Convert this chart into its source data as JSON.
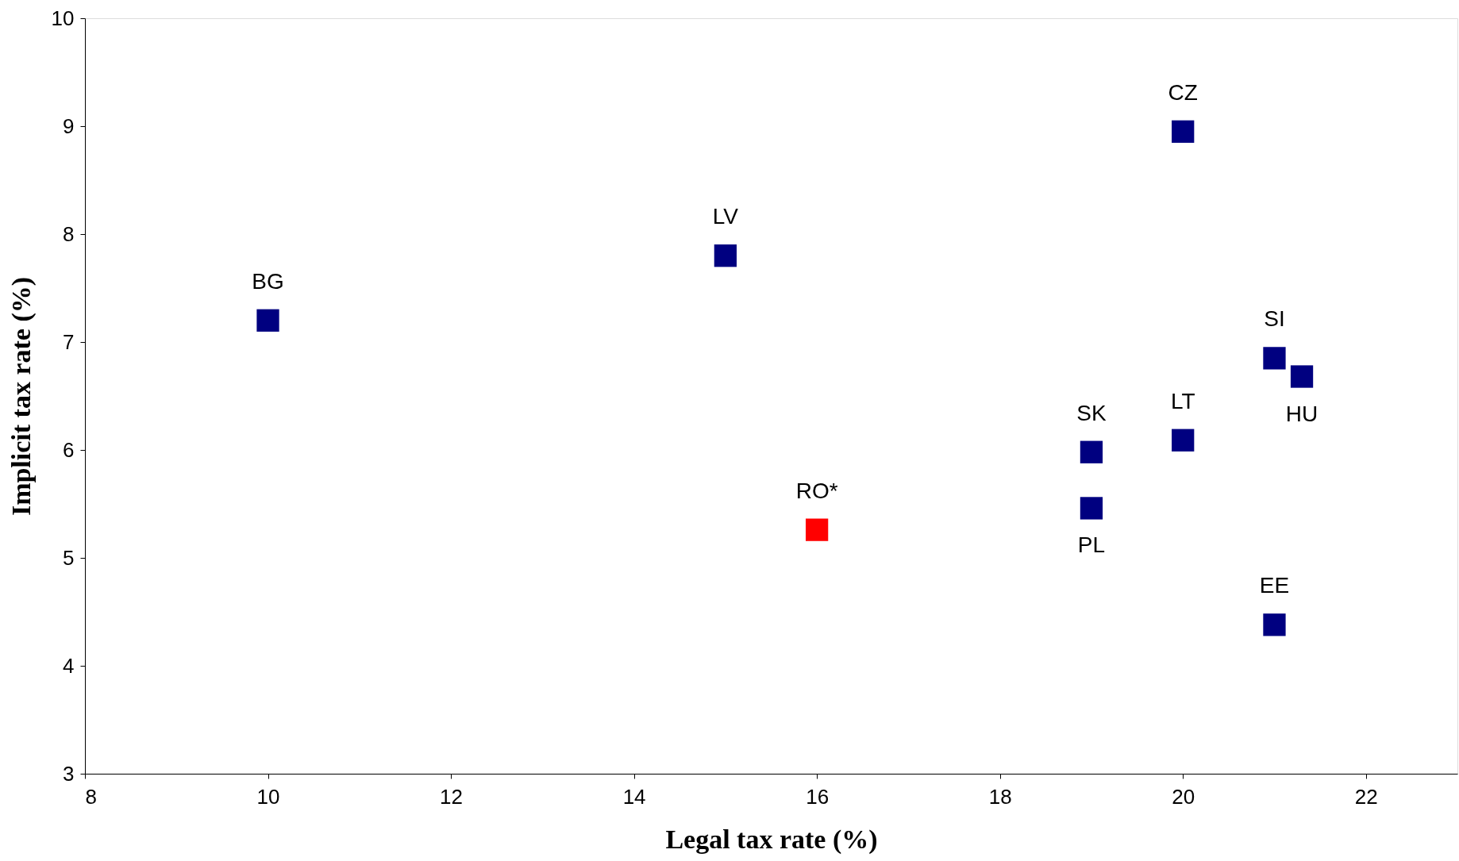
{
  "chart_data": {
    "type": "scatter",
    "xlabel": "Legal tax rate (%)",
    "ylabel": "Implicit tax rate (%)",
    "x": [
      10,
      15,
      20,
      21,
      21.3,
      20,
      19,
      19,
      16,
      21
    ],
    "values": [
      7.2,
      7.8,
      8.95,
      6.85,
      6.68,
      6.09,
      5.98,
      5.46,
      5.26,
      4.38
    ],
    "colors": [
      "#000080",
      "#000080",
      "#000080",
      "#000080",
      "#000080",
      "#000080",
      "#000080",
      "#000080",
      "#ff0000",
      "#000080"
    ],
    "marker": "square",
    "grid": false,
    "legend": false,
    "xlim": [
      8,
      23
    ],
    "xticks": [
      8,
      10,
      12,
      14,
      16,
      18,
      20,
      22
    ],
    "ylim": [
      3,
      10
    ],
    "yticks": [
      3,
      4,
      5,
      6,
      7,
      8,
      9,
      10
    ],
    "annotations": [
      {
        "text": "BG",
        "x": 10,
        "y": 7.2
      },
      {
        "text": "LV",
        "x": 15,
        "y": 7.8
      },
      {
        "text": "CZ",
        "x": 20,
        "y": 8.95
      },
      {
        "text": "SI",
        "x": 21,
        "y": 6.85
      },
      {
        "text": "HU",
        "x": 21.3,
        "y": 6.68
      },
      {
        "text": "LT",
        "x": 20,
        "y": 6.09
      },
      {
        "text": "SK",
        "x": 19,
        "y": 5.98
      },
      {
        "text": "PL",
        "x": 19,
        "y": 5.46
      },
      {
        "text": "RO*",
        "x": 16,
        "y": 5.26
      },
      {
        "text": "EE",
        "x": 21,
        "y": 4.38
      }
    ]
  }
}
